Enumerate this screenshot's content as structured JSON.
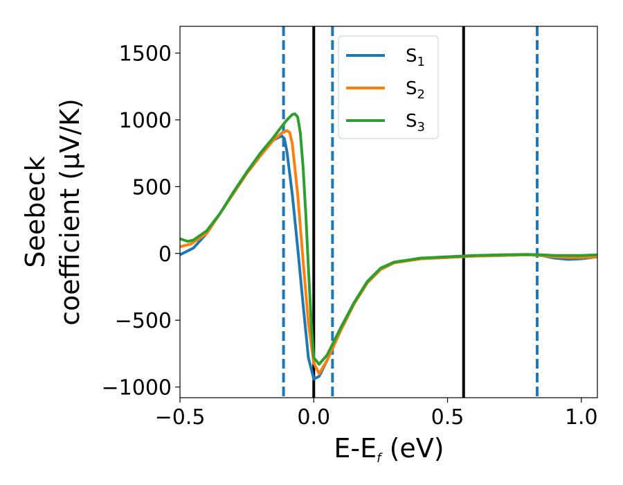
{
  "chart_data": {
    "type": "line",
    "xlabel": {
      "main": "E-E",
      "sub": "f",
      "unit": " (eV)"
    },
    "ylabel": {
      "line1": "Seebeck",
      "line2": "coefficient  (μV/K)"
    },
    "xlim": [
      -0.5,
      1.06
    ],
    "ylim": [
      -1080,
      1700
    ],
    "x_ticks": [
      {
        "value": -0.5,
        "label": "−0.5"
      },
      {
        "value": 0.0,
        "label": "0.0"
      },
      {
        "value": 0.5,
        "label": "0.5"
      },
      {
        "value": 1.0,
        "label": "1.0"
      }
    ],
    "y_ticks": [
      {
        "value": -1000,
        "label": "−1000"
      },
      {
        "value": -500,
        "label": "−500"
      },
      {
        "value": 0,
        "label": "0"
      },
      {
        "value": 500,
        "label": "500"
      },
      {
        "value": 1000,
        "label": "1000"
      },
      {
        "value": 1500,
        "label": "1500"
      }
    ],
    "grid": false,
    "legend_position": "top-center",
    "series": [
      {
        "name": "S",
        "name_sub": "1",
        "color": "#1f77b4",
        "x": [
          -0.5,
          -0.45,
          -0.4,
          -0.35,
          -0.3,
          -0.25,
          -0.2,
          -0.15,
          -0.12,
          -0.11,
          -0.1,
          -0.08,
          -0.06,
          -0.04,
          -0.02,
          0.0,
          0.02,
          0.05,
          0.1,
          0.15,
          0.2,
          0.25,
          0.3,
          0.4,
          0.5,
          0.6,
          0.7,
          0.8,
          0.85,
          0.9,
          0.95,
          1.0,
          1.06
        ],
        "y": [
          -10,
          40,
          150,
          300,
          450,
          600,
          730,
          850,
          880,
          860,
          760,
          440,
          40,
          -380,
          -780,
          -940,
          -920,
          -800,
          -580,
          -380,
          -220,
          -120,
          -70,
          -40,
          -30,
          -20,
          -15,
          -10,
          -15,
          -35,
          -45,
          -40,
          -25
        ]
      },
      {
        "name": "S",
        "name_sub": "2",
        "color": "#ff7f0e",
        "x": [
          -0.5,
          -0.46,
          -0.4,
          -0.35,
          -0.3,
          -0.25,
          -0.2,
          -0.15,
          -0.12,
          -0.1,
          -0.09,
          -0.08,
          -0.06,
          -0.04,
          -0.02,
          0.0,
          0.02,
          0.05,
          0.1,
          0.15,
          0.2,
          0.25,
          0.3,
          0.4,
          0.5,
          0.6,
          0.7,
          0.8,
          0.85,
          0.9,
          0.95,
          1.0,
          1.06
        ],
        "y": [
          50,
          70,
          150,
          300,
          450,
          600,
          730,
          850,
          900,
          920,
          905,
          820,
          440,
          -50,
          -520,
          -820,
          -900,
          -800,
          -580,
          -380,
          -220,
          -120,
          -70,
          -40,
          -30,
          -20,
          -15,
          -10,
          -15,
          -25,
          -30,
          -30,
          -25
        ]
      },
      {
        "name": "S",
        "name_sub": "3",
        "color": "#2ca02c",
        "x": [
          -0.5,
          -0.47,
          -0.45,
          -0.4,
          -0.35,
          -0.3,
          -0.25,
          -0.2,
          -0.15,
          -0.12,
          -0.1,
          -0.08,
          -0.07,
          -0.06,
          -0.05,
          -0.04,
          -0.03,
          -0.02,
          -0.01,
          0.0,
          0.02,
          0.05,
          0.1,
          0.15,
          0.2,
          0.25,
          0.3,
          0.4,
          0.5,
          0.6,
          0.7,
          0.8,
          0.85,
          0.9,
          0.95,
          1.0,
          1.06
        ],
        "y": [
          110,
          90,
          100,
          170,
          300,
          460,
          610,
          750,
          870,
          950,
          1000,
          1040,
          1045,
          1020,
          900,
          650,
          300,
          -100,
          -500,
          -780,
          -830,
          -760,
          -560,
          -370,
          -210,
          -110,
          -65,
          -35,
          -25,
          -15,
          -10,
          -8,
          -10,
          -15,
          -15,
          -15,
          -10
        ]
      }
    ],
    "reference_lines": [
      {
        "x": -0.113,
        "style": "dashed",
        "color": "#1f77b4"
      },
      {
        "x": 0.0,
        "style": "solid",
        "color": "#000000"
      },
      {
        "x": 0.07,
        "style": "dashed",
        "color": "#1f77b4"
      },
      {
        "x": 0.56,
        "style": "solid",
        "color": "#000000"
      },
      {
        "x": 0.835,
        "style": "dashed",
        "color": "#1f77b4"
      }
    ]
  }
}
